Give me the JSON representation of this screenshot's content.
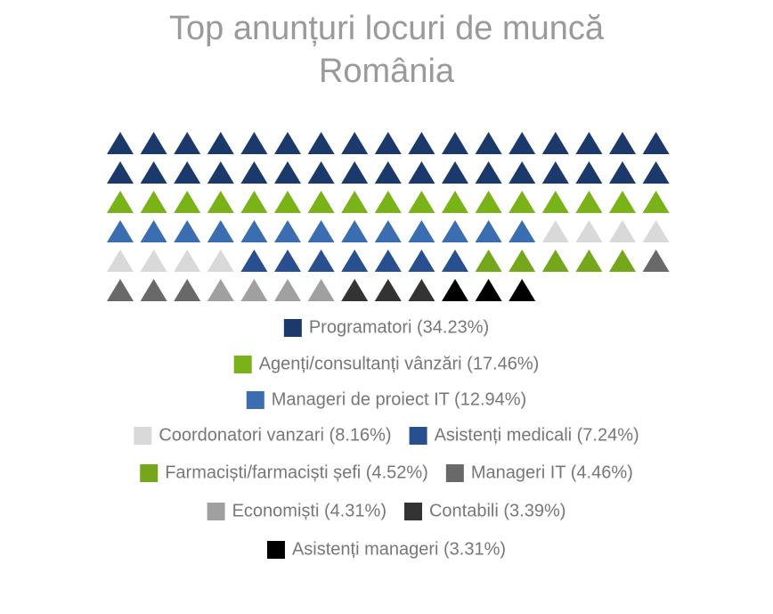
{
  "chart_data": {
    "type": "waffle",
    "title": "Top anunțuri locuri de muncă România",
    "series": [
      {
        "name": "Programatori (34.23%)",
        "color": "#1b3a6b",
        "value": 34
      },
      {
        "name": "Agenți/consultanți vânzări (17.46%)",
        "color": "#7ab317",
        "value": 17
      },
      {
        "name": "Manageri de proiect IT (12.94%)",
        "color": "#3a6eb0",
        "value": 13
      },
      {
        "name": "Coordonatori vanzari (8.16%)",
        "color": "#d9d9d9",
        "value": 8
      },
      {
        "name": "Asistenți medicali (7.24%)",
        "color": "#284f8f",
        "value": 7
      },
      {
        "name": "Farmaciști/farmaciști șefi (4.52%)",
        "color": "#74a81a",
        "value": 5
      },
      {
        "name": "Manageri IT (4.46%)",
        "color": "#696969",
        "value": 4
      },
      {
        "name": "Economiști (4.31%)",
        "color": "#a0a0a0",
        "value": 4
      },
      {
        "name": "Contabili (3.39%)",
        "color": "#333333",
        "value": 3
      },
      {
        "name": "Asistenți manageri (3.31%)",
        "color": "#000000",
        "value": 3
      }
    ]
  }
}
